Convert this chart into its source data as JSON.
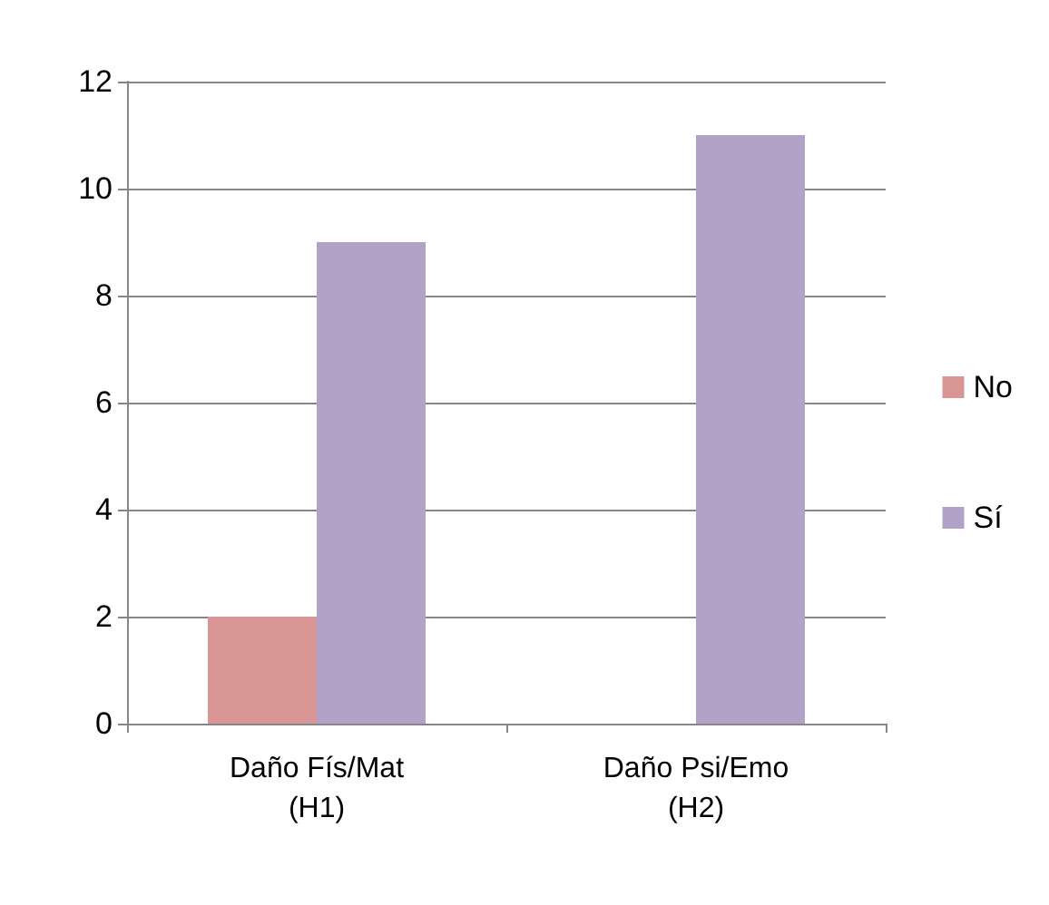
{
  "chart_data": {
    "type": "bar",
    "categories": [
      "Daño Fís/Mat\n(H1)",
      "Daño Psi/Emo\n(H2)"
    ],
    "series": [
      {
        "name": "No",
        "color": "#d99694",
        "values": [
          2,
          0
        ]
      },
      {
        "name": "Sí",
        "color": "#b3a2c7",
        "values": [
          9,
          11
        ]
      }
    ],
    "ylim": [
      0,
      12
    ],
    "yticks": [
      0,
      2,
      4,
      6,
      8,
      10,
      12
    ],
    "grid": "y",
    "legend": "right"
  }
}
